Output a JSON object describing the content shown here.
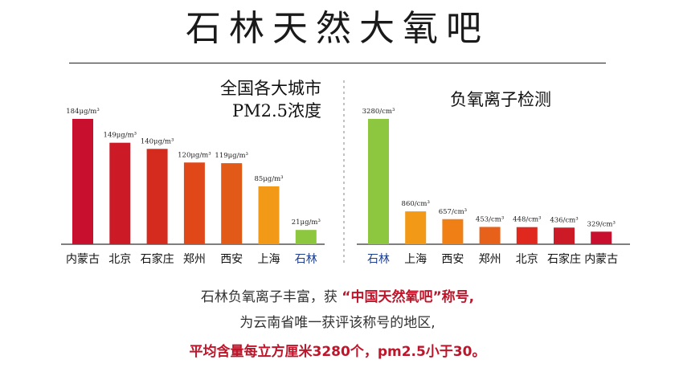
{
  "page": {
    "title": "石林天然大氧吧",
    "caption_line1_pre": "石林负氧离子丰富，获 ",
    "caption_line1_hl": "“中国天然氧吧”称号,",
    "caption_line2": "为云南省唯一获评该称号的地区,",
    "caption_line3": "平均含量每立方厘米3280个，pm2.5小于30。"
  },
  "chart_data": [
    {
      "type": "bar",
      "title_lines": [
        "全国各大城市",
        "PM2.5浓度"
      ],
      "categories": [
        "内蒙古",
        "北京",
        "石家庄",
        "郑州",
        "西安",
        "上海",
        "石林"
      ],
      "values": [
        184,
        149,
        140,
        120,
        119,
        85,
        21
      ],
      "value_labels": [
        "184μg/m³",
        "149μg/m³",
        "140μg/m³",
        "120μg/m³",
        "119μg/m³",
        "85μg/m³",
        "21μg/m³"
      ],
      "colors": [
        "#c8102e",
        "#cc1a26",
        "#d52b1e",
        "#e0481a",
        "#e25a18",
        "#f29a17",
        "#8dc63f"
      ],
      "highlight_category": "石林",
      "highlight_color": "#1f3f8f",
      "ylim": [
        0,
        184
      ]
    },
    {
      "type": "bar",
      "title_lines": [
        "负氧离子检测"
      ],
      "categories": [
        "石林",
        "上海",
        "西安",
        "郑州",
        "北京",
        "石家庄",
        "内蒙古"
      ],
      "values": [
        3280,
        860,
        657,
        453,
        448,
        436,
        329
      ],
      "value_labels": [
        "3280/cm³",
        "860/cm³",
        "657/cm³",
        "453/cm³",
        "448/cm³",
        "436/cm³",
        "329/cm³"
      ],
      "colors": [
        "#8dc63f",
        "#f29a17",
        "#f07f16",
        "#e8611a",
        "#e0281e",
        "#cc1a26",
        "#c8102e"
      ],
      "highlight_category": "石林",
      "highlight_color": "#1f3f8f",
      "ylim": [
        0,
        3280
      ]
    }
  ]
}
